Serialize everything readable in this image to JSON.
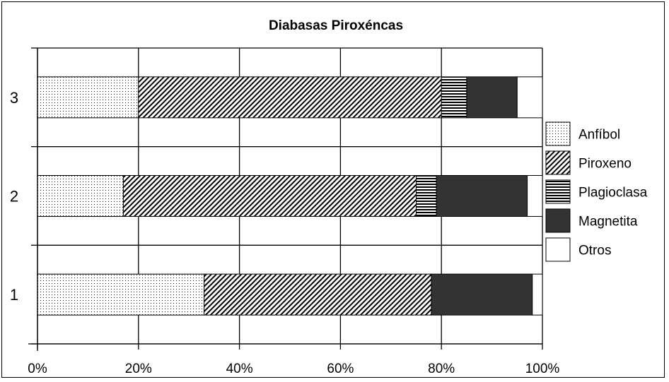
{
  "chart_data": {
    "type": "bar",
    "orientation": "horizontal",
    "stacked": "percent",
    "title": "Diabasas Piroxéncas",
    "categories": [
      "1",
      "2",
      "3"
    ],
    "x_ticks": [
      "0%",
      "20%",
      "40%",
      "60%",
      "80%",
      "100%"
    ],
    "xlim": [
      0,
      100
    ],
    "grid": true,
    "legend_position": "right",
    "series": [
      {
        "name": "Anfíbol",
        "pattern": "dots",
        "values": [
          33,
          17,
          20
        ]
      },
      {
        "name": "Piroxeno",
        "pattern": "diagonal-hatch",
        "values": [
          45,
          58,
          60
        ]
      },
      {
        "name": "Plagioclasa",
        "pattern": "horizontal-lines",
        "values": [
          0,
          4,
          5
        ]
      },
      {
        "name": "Magnetita",
        "pattern": "solid-dark",
        "values": [
          20,
          18,
          10
        ]
      },
      {
        "name": "Otros",
        "pattern": "white",
        "values": [
          2,
          3,
          5
        ]
      }
    ]
  },
  "colors": {
    "background": "#ffffff",
    "border": "#000000",
    "magnetita": "#333333",
    "otros": "#ffffff"
  }
}
